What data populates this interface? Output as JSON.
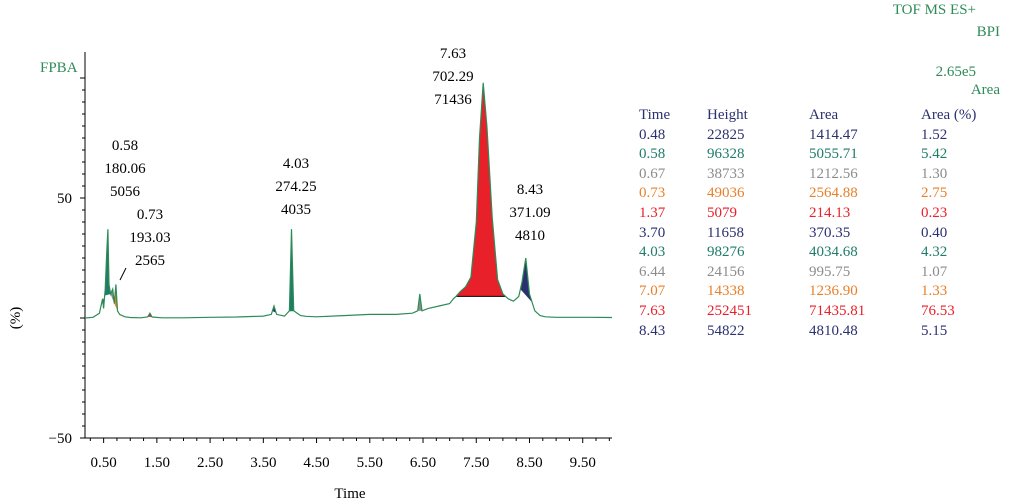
{
  "chart_data": {
    "type": "line",
    "title": "FPBA",
    "xlabel": "Time",
    "ylabel": "(%)",
    "xlim": [
      0.15,
      10.05
    ],
    "ylim": [
      -50,
      100
    ],
    "xticks": [
      "0.50",
      "1.50",
      "2.50",
      "3.50",
      "4.50",
      "5.50",
      "6.50",
      "7.50",
      "8.50",
      "9.50"
    ],
    "yticks": [
      "50",
      "−50"
    ],
    "ytick_values": [
      50,
      -50
    ],
    "x": [
      0.15,
      0.3,
      0.42,
      0.46,
      0.48,
      0.5,
      0.53,
      0.56,
      0.58,
      0.6,
      0.63,
      0.67,
      0.7,
      0.73,
      0.76,
      0.8,
      0.9,
      1.0,
      1.2,
      1.33,
      1.37,
      1.41,
      1.6,
      2.0,
      2.5,
      3.0,
      3.5,
      3.65,
      3.7,
      3.75,
      3.9,
      3.99,
      4.03,
      4.07,
      4.2,
      4.3,
      4.5,
      5.0,
      5.5,
      6.0,
      6.3,
      6.4,
      6.44,
      6.48,
      6.6,
      6.8,
      7.0,
      7.07,
      7.12,
      7.2,
      7.3,
      7.4,
      7.5,
      7.56,
      7.63,
      7.7,
      7.8,
      7.9,
      8.0,
      8.1,
      8.2,
      8.3,
      8.36,
      8.43,
      8.5,
      8.6,
      8.7,
      8.8,
      9.0,
      9.3,
      9.6,
      10.05
    ],
    "y": [
      0,
      0.3,
      2,
      6,
      8,
      4,
      12,
      28,
      37,
      14,
      10,
      12,
      6,
      14,
      3,
      1.5,
      0.5,
      0.2,
      0.1,
      0.5,
      2,
      0.4,
      0.1,
      0.1,
      0.3,
      0.4,
      0.8,
      1.5,
      5,
      1.5,
      0.8,
      3,
      37,
      3,
      1,
      0.7,
      0.5,
      1,
      1.5,
      1.5,
      2,
      3,
      10,
      3,
      4,
      5,
      6,
      8,
      9,
      11,
      13,
      17,
      40,
      75,
      98,
      80,
      42,
      16,
      10,
      8,
      7,
      9,
      15,
      25,
      10,
      3,
      1,
      0.5,
      0.3,
      0.3,
      0.3,
      0.2
    ],
    "peaks": [
      {
        "time": "0.48",
        "height": "22825",
        "area": "1414.47",
        "area_pct": "1.52",
        "color": "#2a3070"
      },
      {
        "time": "0.58",
        "height": "96328",
        "area": "5055.71",
        "area_pct": "5.42",
        "color": "#1e7c6a"
      },
      {
        "time": "0.67",
        "height": "38733",
        "area": "1212.56",
        "area_pct": "1.30",
        "color": "#8c8c8c"
      },
      {
        "time": "0.73",
        "height": "49036",
        "area": "2564.88",
        "area_pct": "2.75",
        "color": "#e8802a"
      },
      {
        "time": "1.37",
        "height": "5079",
        "area": "214.13",
        "area_pct": "0.23",
        "color": "#e8202a"
      },
      {
        "time": "3.70",
        "height": "11658",
        "area": "370.35",
        "area_pct": "0.40",
        "color": "#2a3070"
      },
      {
        "time": "4.03",
        "height": "98276",
        "area": "4034.68",
        "area_pct": "4.32",
        "color": "#1e7c6a"
      },
      {
        "time": "6.44",
        "height": "24156",
        "area": "995.75",
        "area_pct": "1.07",
        "color": "#8c8c8c"
      },
      {
        "time": "7.07",
        "height": "14338",
        "area": "1236.90",
        "area_pct": "1.33",
        "color": "#e8802a"
      },
      {
        "time": "7.63",
        "height": "252451",
        "area": "71435.81",
        "area_pct": "76.53",
        "color": "#e8202a"
      },
      {
        "time": "8.43",
        "height": "54822",
        "area": "4810.48",
        "area_pct": "5.15",
        "color": "#2a3070"
      }
    ],
    "annotations": [
      {
        "lines": [
          "0.58",
          "180.06",
          "5056"
        ]
      },
      {
        "lines": [
          "0.73",
          "193.03",
          "2565"
        ]
      },
      {
        "lines": [
          "4.03",
          "274.25",
          "4035"
        ]
      },
      {
        "lines": [
          "7.63",
          "702.29",
          "71436"
        ]
      },
      {
        "lines": [
          "8.43",
          "371.09",
          "4810"
        ]
      }
    ]
  },
  "header": {
    "mode": "TOF MS ES+",
    "trace": "BPI",
    "scale": "2.65e5",
    "area_label": "Area"
  },
  "table": {
    "headers": [
      "Time",
      "Height",
      "Area",
      "Area (%)"
    ]
  },
  "colors": {
    "trace": "#2e8b57",
    "axis": "#000000"
  }
}
